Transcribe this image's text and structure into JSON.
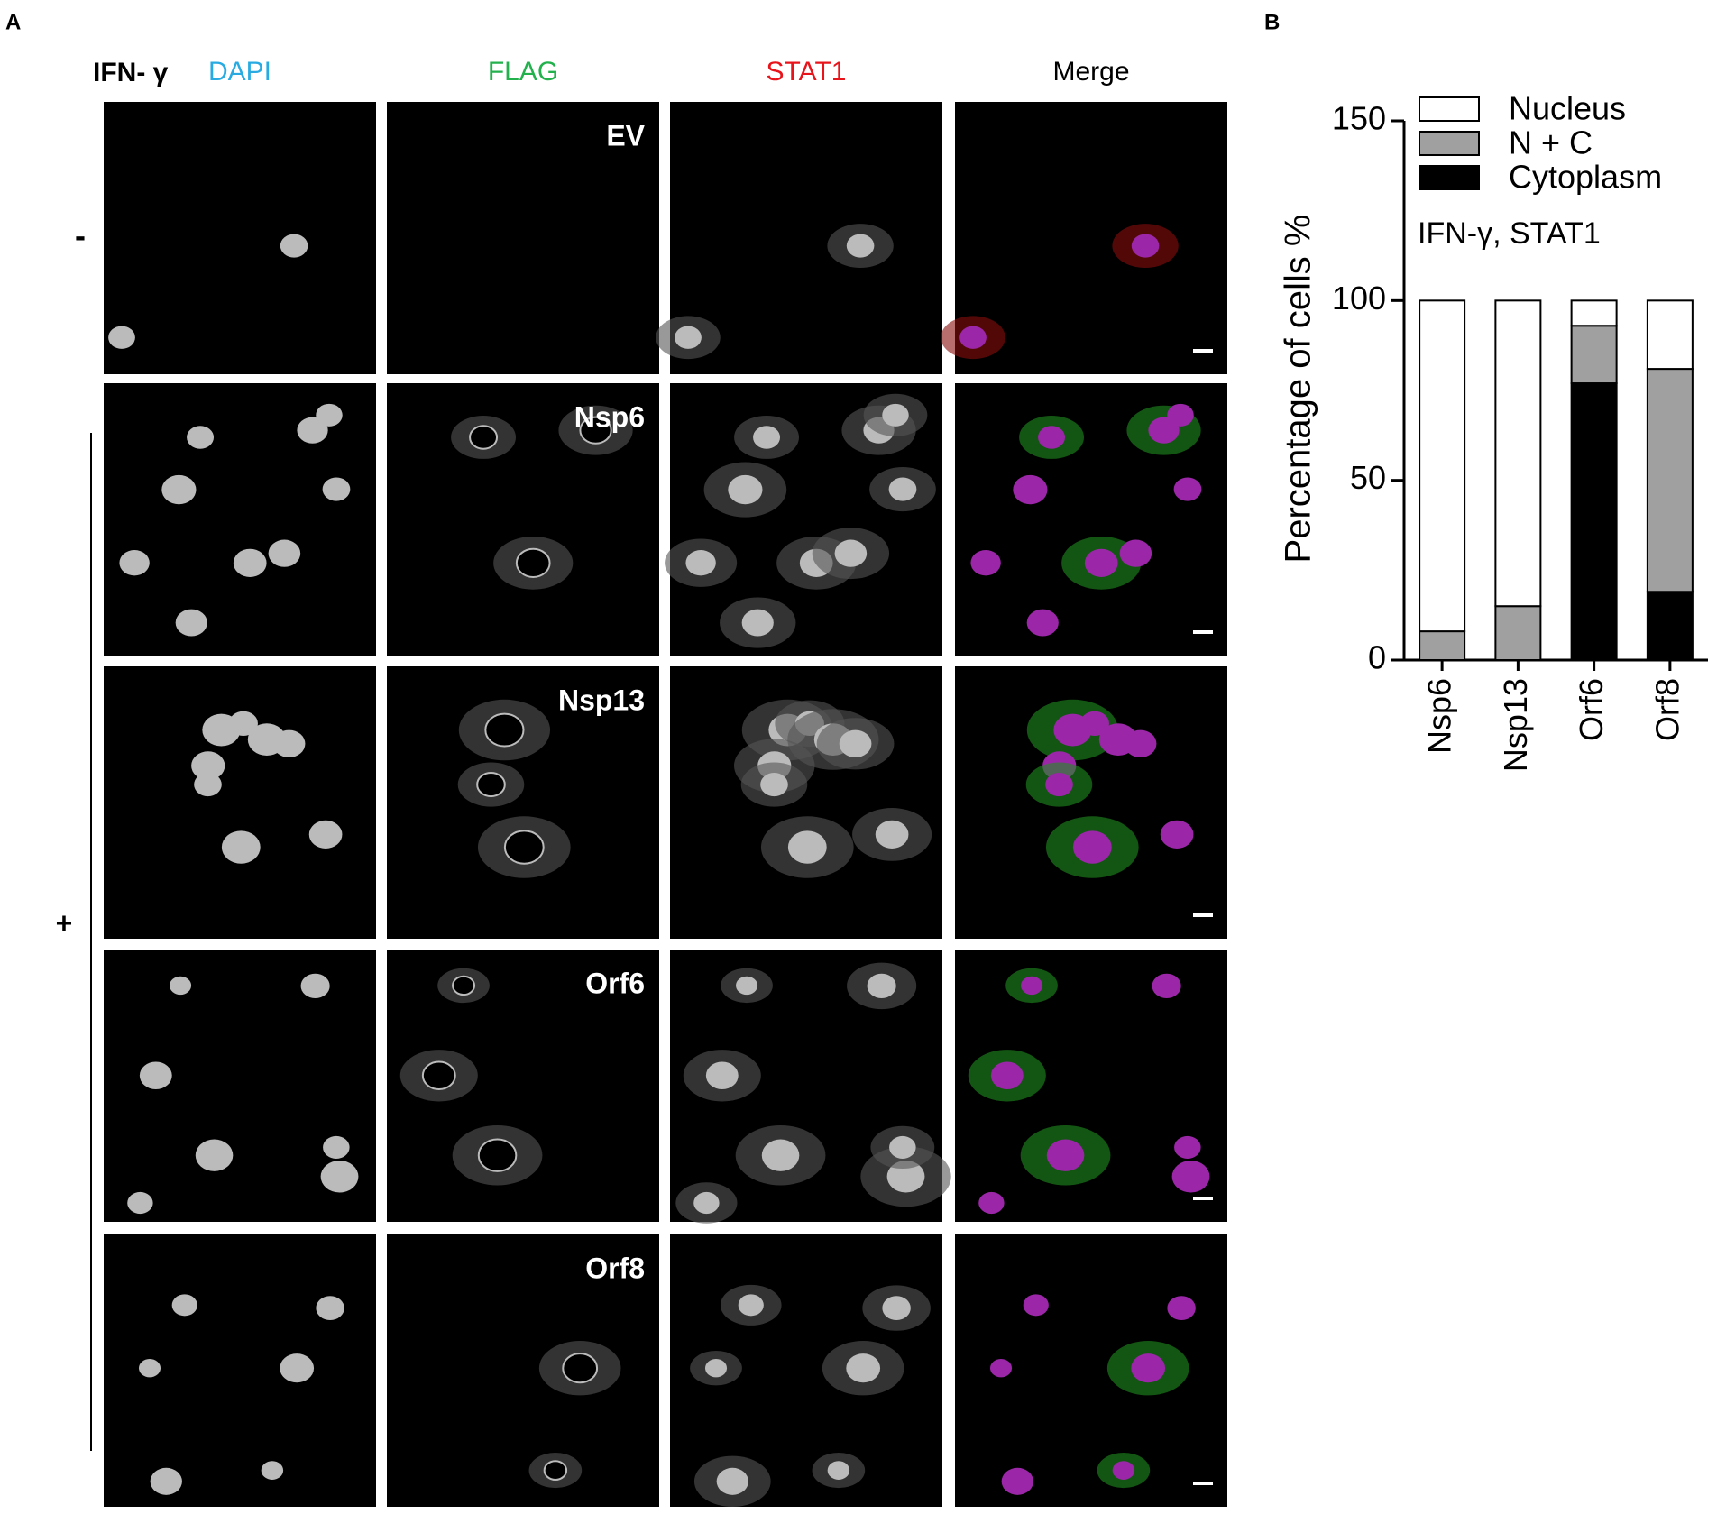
{
  "panel_a": {
    "label": "A",
    "condition": "IFN- γ",
    "columns": [
      "DAPI",
      "FLAG",
      "STAT1",
      "Merge"
    ],
    "treatments": [
      "-",
      "+"
    ],
    "rows": [
      {
        "label": "EV"
      },
      {
        "label": "Nsp6"
      },
      {
        "label": "Nsp13"
      },
      {
        "label": "Orf6"
      },
      {
        "label": "Orf8"
      }
    ]
  },
  "chart_data": {
    "type": "stacked_bar",
    "panel_label": "B",
    "ylabel": "Percentage of cells %",
    "annotation": "IFN-γ, STAT1",
    "categories": [
      "Nsp6",
      "Nsp13",
      "Orf6",
      "Orf8"
    ],
    "series": [
      {
        "name": "Nucleus",
        "color": "#ffffff",
        "values": [
          92,
          85,
          7,
          19
        ]
      },
      {
        "name": "N + C",
        "color": "#a0a0a0",
        "values": [
          8,
          15,
          16,
          62
        ]
      },
      {
        "name": "Cytoplasm",
        "color": "#000000",
        "values": [
          0,
          0,
          77,
          19
        ]
      }
    ],
    "ylim": [
      0,
      150
    ],
    "yticks": [
      0,
      50,
      100,
      150
    ],
    "legend": "upper left"
  }
}
